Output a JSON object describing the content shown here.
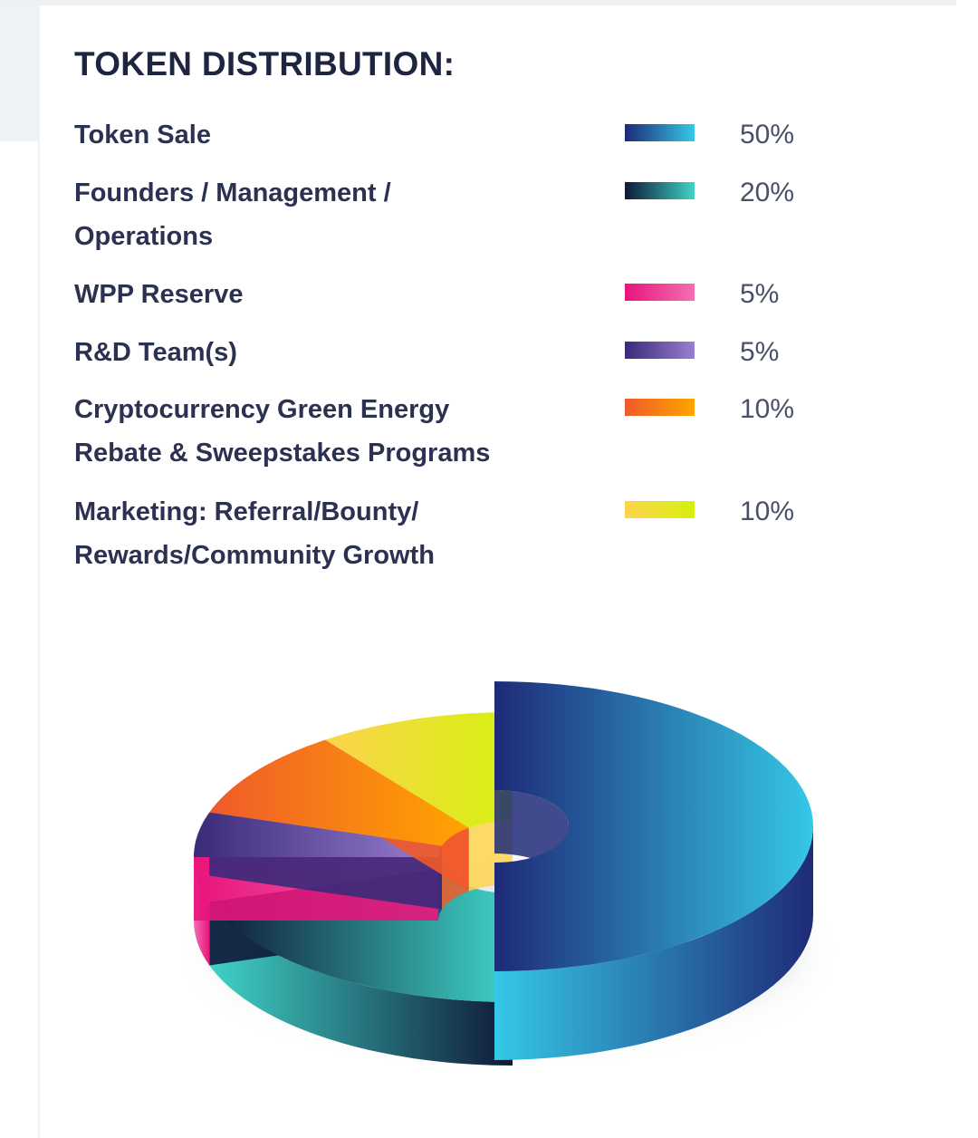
{
  "chart_data": {
    "type": "pie",
    "style": "3d-donut",
    "title": "TOKEN DISTRIBUTION:",
    "legend_placement": "top",
    "slices": [
      {
        "label": "Token Sale",
        "value": 50,
        "value_label": "50%",
        "colors": [
          "#1e2a78",
          "#35c8e6"
        ]
      },
      {
        "label": "Founders / Management / Operations",
        "lines": [
          "Founders / Management /",
          "Operations"
        ],
        "value": 20,
        "value_label": "20%",
        "colors": [
          "#0f1838",
          "#3fd3c6"
        ]
      },
      {
        "label": "WPP Reserve",
        "value": 5,
        "value_label": "5%",
        "colors": [
          "#e8157c",
          "#f46fb2"
        ]
      },
      {
        "label": "R&D Team(s)",
        "value": 5,
        "value_label": "5%",
        "colors": [
          "#3a2a7a",
          "#9a7fd0"
        ]
      },
      {
        "label": "Cryptocurrency Green Energy Rebate & Sweepstakes Programs",
        "lines": [
          "Cryptocurrency Green Energy",
          "Rebate & Sweepstakes Programs"
        ],
        "value": 10,
        "value_label": "10%",
        "colors": [
          "#f05a2a",
          "#ffa500"
        ]
      },
      {
        "label": "Marketing: Referral/Bounty/ Rewards/Community Growth",
        "lines": [
          "Marketing: Referral/Bounty/",
          "Rewards/Community Growth"
        ],
        "value": 10,
        "value_label": "10%",
        "colors": [
          "#fdd44e",
          "#d6f00f"
        ]
      }
    ]
  }
}
